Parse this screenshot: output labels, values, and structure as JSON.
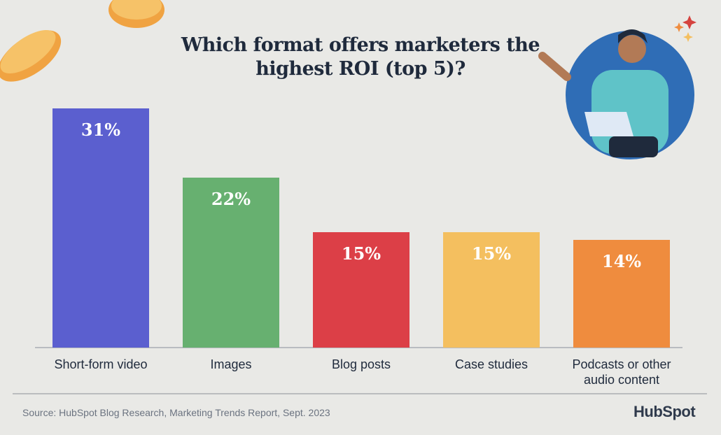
{
  "chart_data": {
    "type": "bar",
    "title": "Which format offers marketers the highest ROI (top 5)?",
    "categories": [
      "Short-form video",
      "Images",
      "Blog posts",
      "Case studies",
      "Podcasts or other audio content"
    ],
    "values": [
      31,
      22,
      15,
      15,
      14
    ],
    "value_labels": [
      "31%",
      "22%",
      "15%",
      "15%",
      "14%"
    ],
    "colors": [
      "#5b5fcf",
      "#67b070",
      "#dc3f47",
      "#f4bf5f",
      "#ef8c3e"
    ],
    "source": "Source: HubSpot Blog Research, Marketing Trends Report, Sept. 2023",
    "logo": "HubSpot"
  }
}
